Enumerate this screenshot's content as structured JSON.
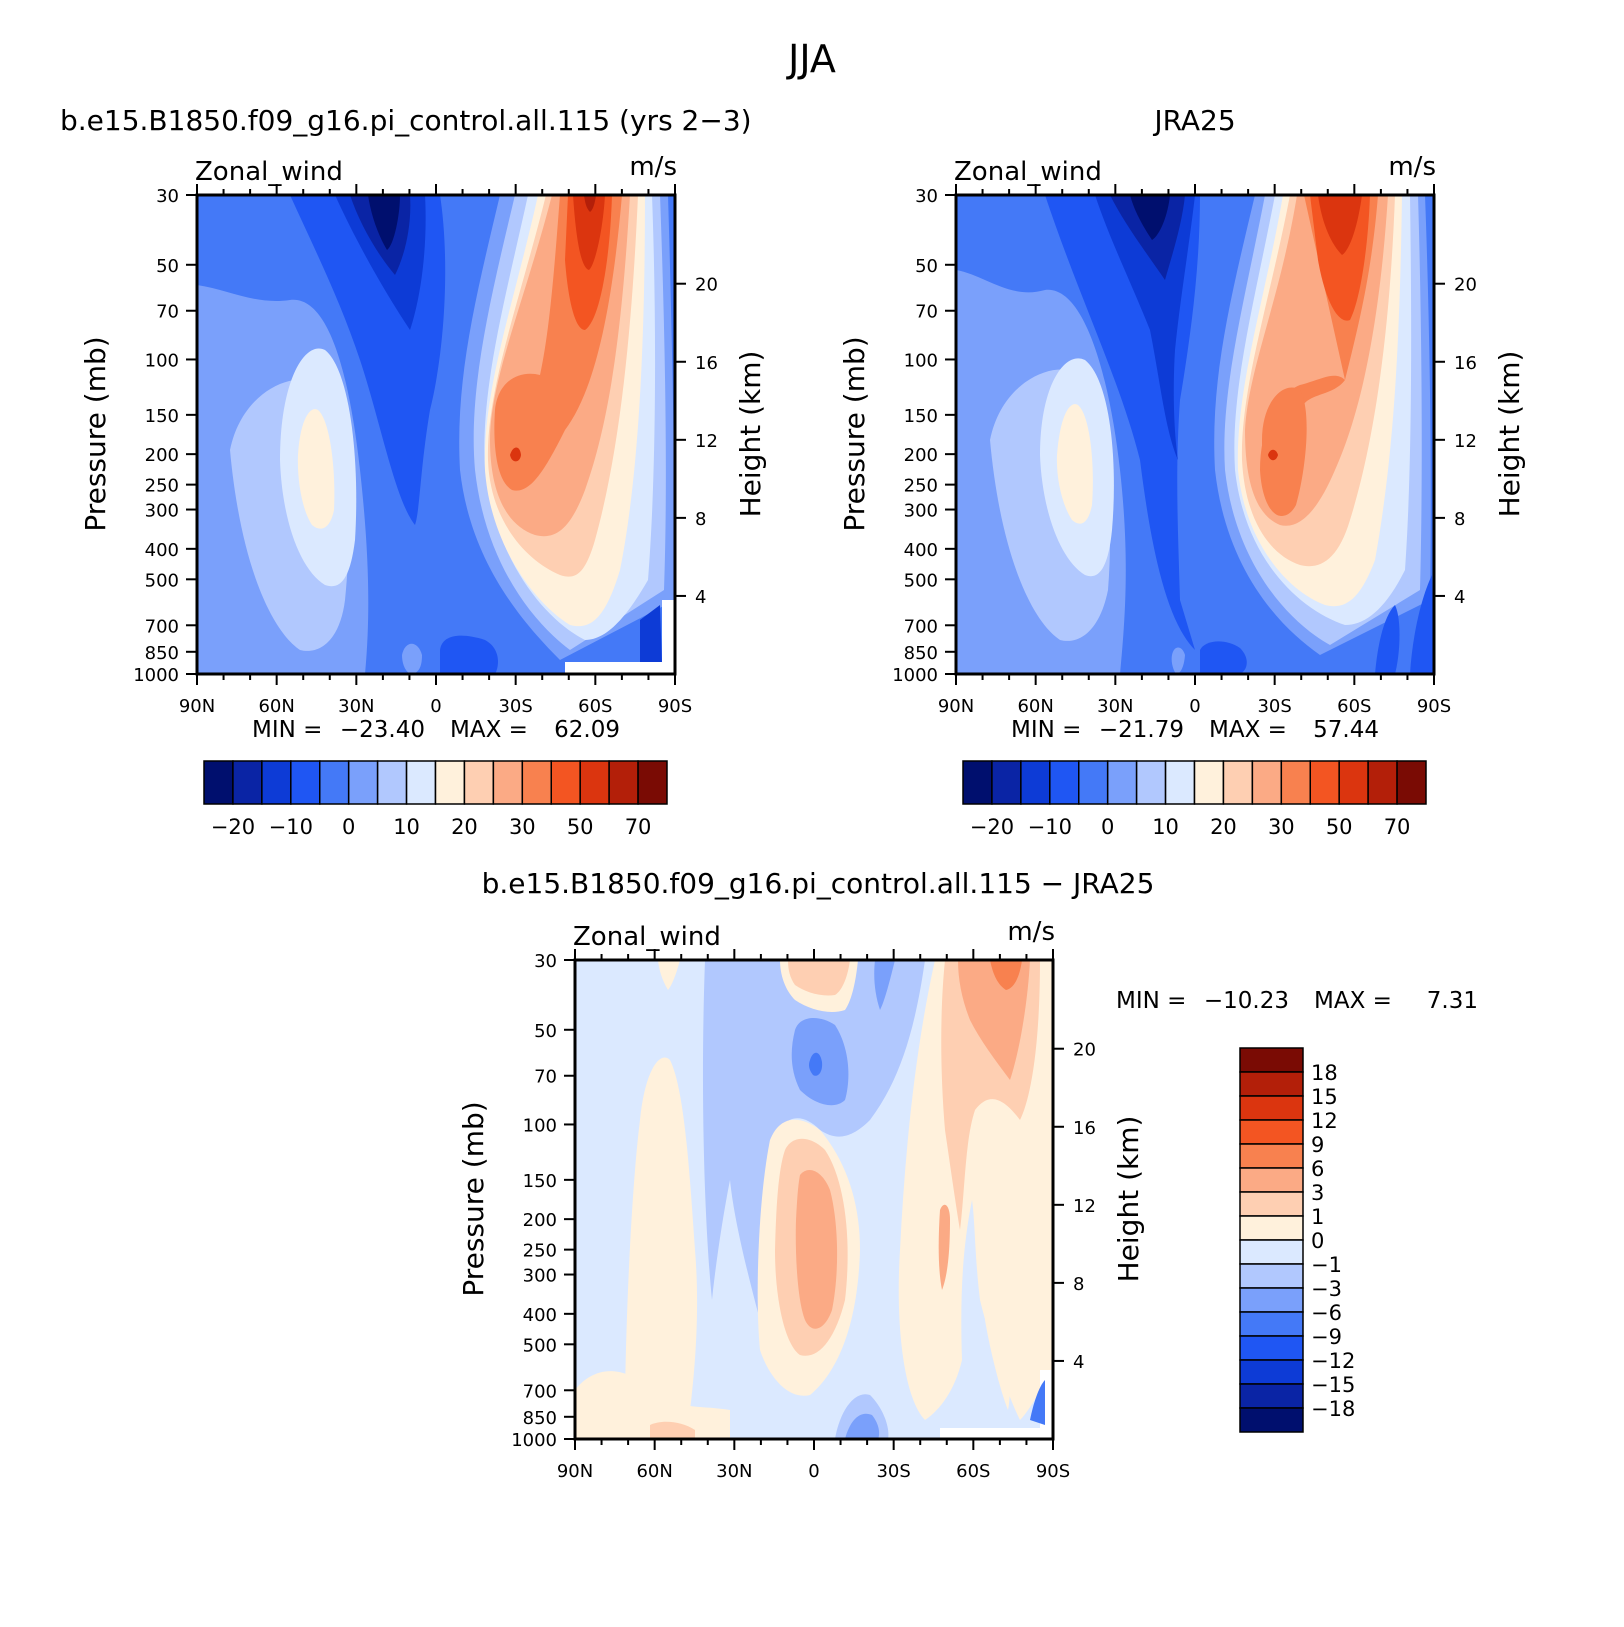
{
  "figure": {
    "title": "JJA"
  },
  "chart_data": [
    {
      "type": "heatmap",
      "title": "b.e15.B1850.f09_g16.pi_control.all.115 (yrs 2−3)",
      "variable_label": "Zonal_wind",
      "units_label": "m/s",
      "ylabel": "Pressure (mb)",
      "ylabel_right": "Height (km)",
      "x_ticks": [
        "90N",
        "60N",
        "30N",
        "0",
        "30S",
        "60S",
        "90S"
      ],
      "y_ticks": [
        "30",
        "50",
        "70",
        "100",
        "150",
        "200",
        "250",
        "300",
        "400",
        "500",
        "700",
        "850",
        "1000"
      ],
      "y_ticks_right": [
        "4",
        "8",
        "12",
        "16",
        "20"
      ],
      "min_label": "MIN =",
      "min_value": "−23.40",
      "max_label": "MAX =",
      "max_value": "62.09",
      "ylim": [
        1000,
        30
      ],
      "colorbar": {
        "orientation": "horizontal",
        "colors": [
          "#000f6e",
          "#0a24a5",
          "#0d3bd6",
          "#1f56f3",
          "#4479f7",
          "#7aa0fb",
          "#b1c8fe",
          "#dbe9ff",
          "#fff1dc",
          "#fecfb2",
          "#fbaa85",
          "#f8814f",
          "#f35522",
          "#db350f",
          "#b31f09",
          "#7a0b04"
        ],
        "labels": [
          "−20",
          "−10",
          "0",
          "10",
          "20",
          "30",
          "50",
          "70"
        ]
      }
    },
    {
      "type": "heatmap",
      "title": "JRA25",
      "variable_label": "Zonal_wind",
      "units_label": "m/s",
      "ylabel": "Pressure (mb)",
      "ylabel_right": "Height (km)",
      "x_ticks": [
        "90N",
        "60N",
        "30N",
        "0",
        "30S",
        "60S",
        "90S"
      ],
      "y_ticks": [
        "30",
        "50",
        "70",
        "100",
        "150",
        "200",
        "250",
        "300",
        "400",
        "500",
        "700",
        "850",
        "1000"
      ],
      "y_ticks_right": [
        "4",
        "8",
        "12",
        "16",
        "20"
      ],
      "min_label": "MIN =",
      "min_value": "−21.79",
      "max_label": "MAX =",
      "max_value": "57.44",
      "ylim": [
        1000,
        30
      ],
      "colorbar": {
        "orientation": "horizontal",
        "colors": [
          "#000f6e",
          "#0a24a5",
          "#0d3bd6",
          "#1f56f3",
          "#4479f7",
          "#7aa0fb",
          "#b1c8fe",
          "#dbe9ff",
          "#fff1dc",
          "#fecfb2",
          "#fbaa85",
          "#f8814f",
          "#f35522",
          "#db350f",
          "#b31f09",
          "#7a0b04"
        ],
        "labels": [
          "−20",
          "−10",
          "0",
          "10",
          "20",
          "30",
          "50",
          "70"
        ]
      }
    },
    {
      "type": "heatmap",
      "title": "b.e15.B1850.f09_g16.pi_control.all.115 − JRA25",
      "variable_label": "Zonal_wind",
      "units_label": "m/s",
      "ylabel": "Pressure (mb)",
      "ylabel_right": "Height (km)",
      "x_ticks": [
        "90N",
        "60N",
        "30N",
        "0",
        "30S",
        "60S",
        "90S"
      ],
      "y_ticks": [
        "30",
        "50",
        "70",
        "100",
        "150",
        "200",
        "250",
        "300",
        "400",
        "500",
        "700",
        "850",
        "1000"
      ],
      "y_ticks_right": [
        "4",
        "8",
        "12",
        "16",
        "20"
      ],
      "min_label": "MIN =",
      "min_value": "−10.23",
      "max_label": "MAX =",
      "max_value": "7.31",
      "ylim": [
        1000,
        30
      ],
      "colorbar": {
        "orientation": "vertical",
        "colors": [
          "#7a0b04",
          "#b31f09",
          "#db350f",
          "#f35522",
          "#f8814f",
          "#fbaa85",
          "#fecfb2",
          "#fff1dc",
          "#dbe9ff",
          "#b1c8fe",
          "#7aa0fb",
          "#4479f7",
          "#1f56f3",
          "#0d3bd6",
          "#0a24a5",
          "#000f6e"
        ],
        "labels": [
          "18",
          "15",
          "12",
          "9",
          "6",
          "3",
          "1",
          "0",
          "−1",
          "−3",
          "−6",
          "−9",
          "−12",
          "−15",
          "−18"
        ]
      }
    }
  ]
}
